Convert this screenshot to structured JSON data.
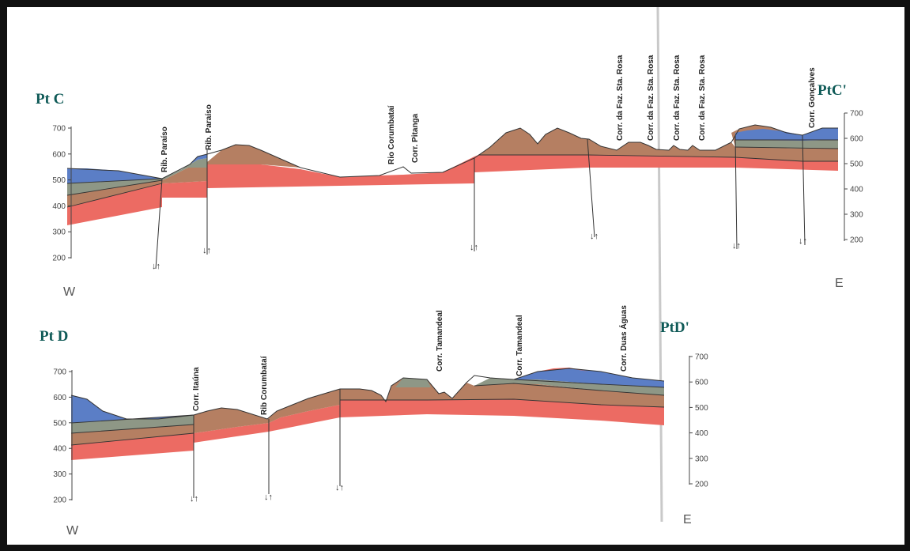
{
  "profiles": [
    {
      "label_left": "Pt C",
      "label_right": "PtC'",
      "dir_left": "W",
      "dir_right": "E",
      "axis_ticks": [
        "700",
        "600",
        "500",
        "400",
        "300",
        "200"
      ],
      "features": [
        "Rib. Paraíso",
        "Rib. Paraíso",
        "Rio Corumbataí",
        "Corr. Pitanga",
        "Corr. da Faz. Sta. Rosa",
        "Corr. da Faz. Sta. Rosa",
        "Corr. da Faz. Sta. Rosa",
        "Corr. da Faz. Sta. Rosa",
        "Corr. Gonçalves"
      ],
      "fault_arrows": "↓↑"
    },
    {
      "label_left": "Pt D",
      "label_right": "PtD'",
      "dir_left": "W",
      "dir_right": "E",
      "axis_ticks": [
        "700",
        "600",
        "500",
        "400",
        "300",
        "200"
      ],
      "features": [
        "Corr. Itaúna",
        "Rib Corumbataí",
        "Corr. Tamandeal",
        "Corr. Tamandeal",
        "Corr. Duas Águas"
      ],
      "fault_arrows": "↓↑"
    }
  ],
  "colors": {
    "blue": "#5b7ec6",
    "gray": "#8e9786",
    "brown": "#b57f62",
    "red": "#ec6b63",
    "frame": "#111111"
  }
}
